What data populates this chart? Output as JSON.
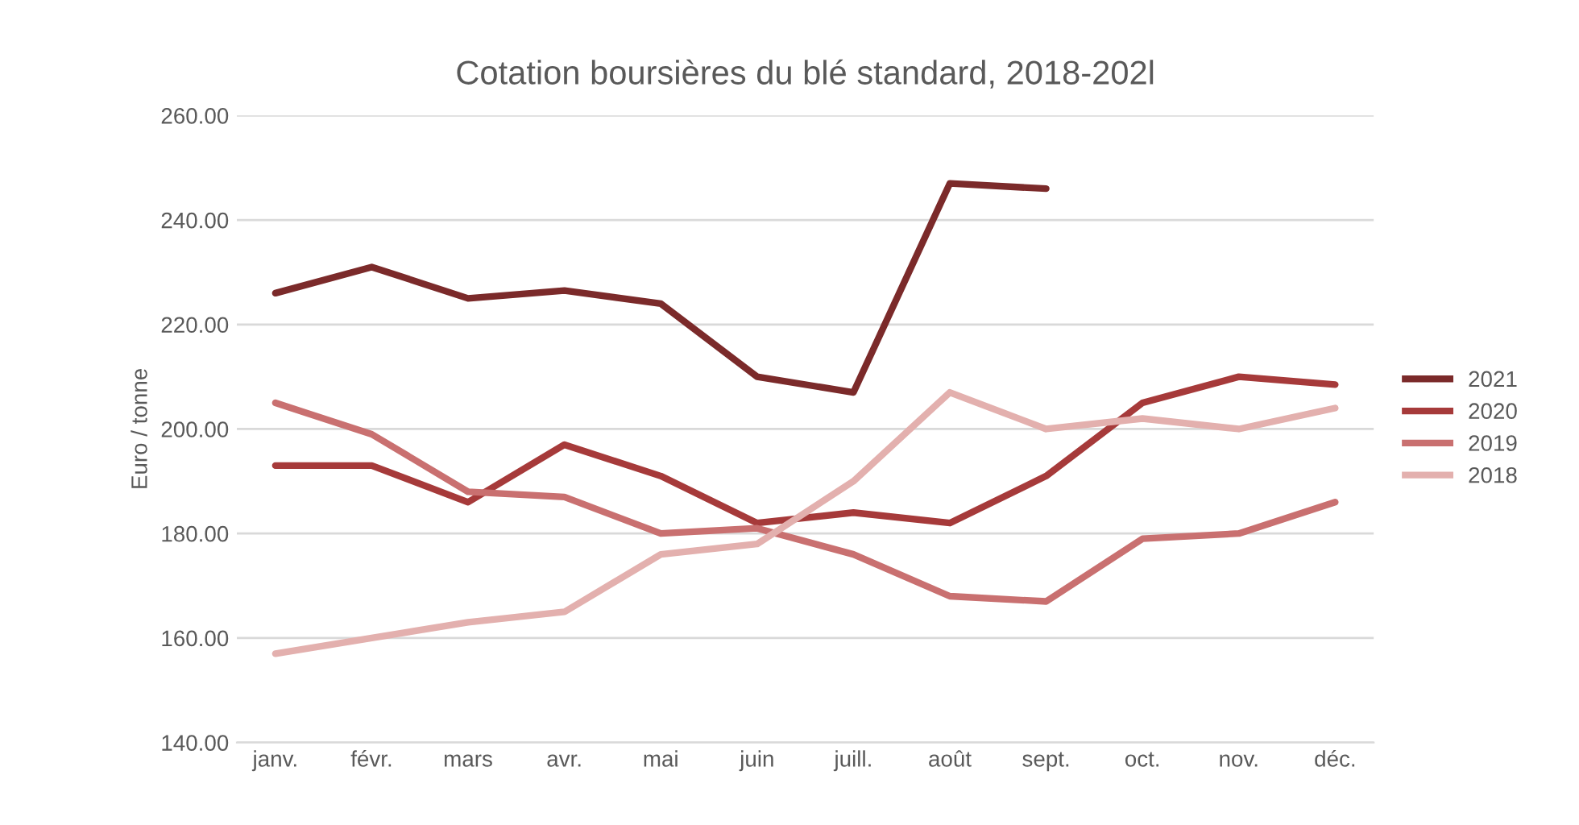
{
  "chart_data": {
    "type": "line",
    "title": "Cotation boursières du blé standard, 2018-202l",
    "ylabel": "Euro / tonne",
    "categories": [
      "janv.",
      "févr.",
      "mars",
      "avr.",
      "mai",
      "juin",
      "juill.",
      "août",
      "sept.",
      "oct.",
      "nov.",
      "déc."
    ],
    "series": [
      {
        "name": "2021",
        "color": "#7b2a2a",
        "values": [
          226,
          231,
          225,
          226.5,
          224,
          210,
          207,
          247,
          246,
          null,
          null,
          null
        ]
      },
      {
        "name": "2020",
        "color": "#a63a3a",
        "values": [
          193,
          193,
          186,
          197,
          191,
          182,
          184,
          182,
          191,
          205,
          210,
          208.5
        ]
      },
      {
        "name": "2019",
        "color": "#c97070",
        "values": [
          205,
          199,
          188,
          187,
          180,
          181,
          176,
          168,
          167,
          179,
          180,
          186
        ]
      },
      {
        "name": "2018",
        "color": "#e3b0ae",
        "values": [
          157,
          160,
          163,
          165,
          176,
          178,
          190,
          207,
          200,
          202,
          200,
          204
        ]
      }
    ],
    "ylim": [
      140,
      260
    ],
    "yticks": [
      {
        "value": 140,
        "label": "140.00"
      },
      {
        "value": 160,
        "label": "160.00"
      },
      {
        "value": 180,
        "label": "180.00"
      },
      {
        "value": 200,
        "label": "200.00"
      },
      {
        "value": 220,
        "label": "220.00"
      },
      {
        "value": 240,
        "label": "240.00"
      },
      {
        "value": 260,
        "label": "260.00"
      }
    ],
    "grid": "y",
    "legend": "right",
    "marker": "none",
    "line_style": "solid"
  }
}
